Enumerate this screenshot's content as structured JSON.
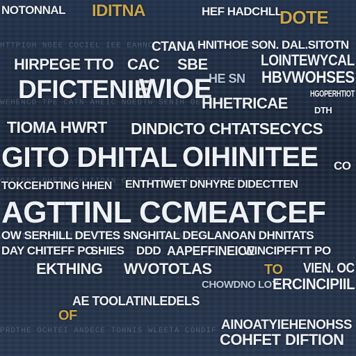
{
  "noise_rows": [
    "HTTPIOH NGEE COCIEL IEE EAHNCCT NEO ESSBT PHOEATLNS",
    "WEHENCO TPE CATN AHEIC NOEDTW SENIH OEFTLAB CT",
    "OIEIGNT DHET ECHLTIOAN CSEH EWT BTEO DGONELTIH",
    "AENHTC ESOPDLIET NHTOCE AETH SDONIWE TECLPA",
    "PRDTHE OCHTEI ANDECE TOHNIS WLEETA CONDIF"
  ],
  "words": {
    "r1a": "NOTONNAL",
    "r1b": "IDITNA",
    "r1c": "HEF HADCHLL",
    "r1d": "DOTE",
    "r2a": "CTANA",
    "r2b": "HNITHOE SON. DAL.SITOTN",
    "r3a": "HIRPEGE TTO",
    "r3b": "CAC",
    "r3c": "SBE",
    "r3d": "LOINTEWYCAL",
    "r4a": "HE SN",
    "r4b": "HBVWOHSES",
    "r5a": "DFICTENIE",
    "r5b": "WIOE",
    "r5c": "HGOPERHTIOT",
    "r6a": "HHETRICAE",
    "r6b": "DTH",
    "r6c": "TIOMA HWRT",
    "r6d": "DINDICTO CHTATSECYCS",
    "r7a": "GITO DHITAL",
    "r7b": "OIHINITEE",
    "r7c": "CO",
    "r8a": "TOKCEHDTING HHEN",
    "r8b": "ENTHTIWET DNHYRE DIDECTTEN",
    "r9a": "AGTTINL CCMEATCEF",
    "r10a": "OW SERHILL DEVTES SNGHITAL DEGLANOAN DHNITATS",
    "r11a": "DAY CHITEFF PO",
    "r11b": "SHIES",
    "r11c": "DDD",
    "r11d": "AAPEFFINEICE",
    "r11e": "WINCIPFFTT PO",
    "r12a": "EKTHING",
    "r12b": "WVOTOT",
    "r12c": "LAS",
    "r12d": "TO",
    "r12e": "VIEN. OC",
    "r13a": "CHOWDNO LOY",
    "r13b": "ERCINCIPIIL",
    "r14a": "AE TOOLATINLEDELS",
    "r14b": "OF",
    "r15a": "AINOATYIEHENOHSS",
    "r15b": "COHFET",
    "r15c": "DIFTION"
  }
}
